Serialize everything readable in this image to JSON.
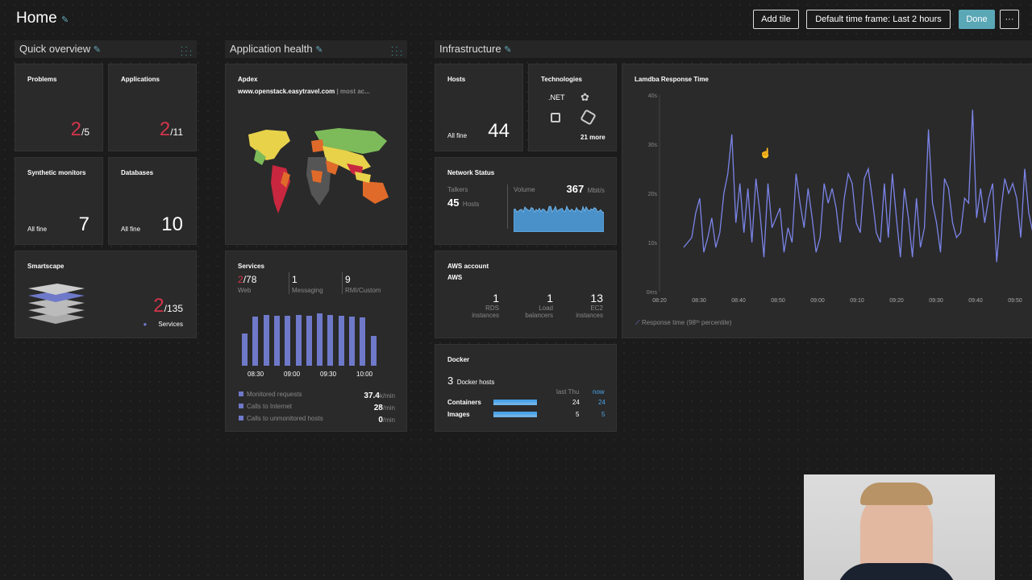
{
  "header": {
    "title": "Home",
    "add_tile": "Add tile",
    "timeframe": "Default time frame: Last 2 hours",
    "done": "Done",
    "more": "···"
  },
  "sections": {
    "quick": "Quick overview",
    "apphealth": "Application health",
    "infra": "Infrastructure"
  },
  "problems": {
    "title": "Problems",
    "num": "2",
    "den": "/5"
  },
  "applications": {
    "title": "Applications",
    "num": "2",
    "den": "/11"
  },
  "synthetic": {
    "title": "Synthetic monitors",
    "status": "All fine",
    "value": "7"
  },
  "databases": {
    "title": "Databases",
    "status": "All fine",
    "value": "10"
  },
  "smartscape": {
    "title": "Smartscape",
    "num": "2",
    "den": "/135",
    "label": "Services"
  },
  "apdex": {
    "title": "Apdex",
    "app": "www.openstack.easytravel.com",
    "suffix": "| most ac..."
  },
  "services": {
    "title": "Services",
    "web_num": "2",
    "web_den": "/78",
    "web_label": "Web",
    "msg_num": "1",
    "msg_label": "Messaging",
    "rmi_num": "9",
    "rmi_label": "RMI/Custom",
    "times": [
      "08:30",
      "09:00",
      "09:30",
      "10:00"
    ],
    "rows": [
      {
        "label": "Monitored requests",
        "value": "37.4",
        "unit": "k/min"
      },
      {
        "label": "Calls to Internet",
        "value": "28",
        "unit": "/min"
      },
      {
        "label": "Calls to unmonitored hosts",
        "value": "0",
        "unit": "/min"
      }
    ],
    "bars": [
      0.55,
      0.85,
      0.87,
      0.86,
      0.86,
      0.87,
      0.86,
      0.9,
      0.87,
      0.86,
      0.85,
      0.83,
      0.52
    ]
  },
  "hosts": {
    "title": "Hosts",
    "status": "All fine",
    "value": "44"
  },
  "technologies": {
    "title": "Technologies",
    "net": ".NET",
    "more": "21 more"
  },
  "network": {
    "title": "Network Status",
    "talkers_label": "Talkers",
    "talkers": "45",
    "hosts_label": "Hosts",
    "volume_label": "Volume",
    "volume": "367",
    "volume_unit": "Mbit/s"
  },
  "aws": {
    "title": "AWS account",
    "name": "AWS",
    "items": [
      {
        "value": "1",
        "l1": "RDS",
        "l2": "instances"
      },
      {
        "value": "1",
        "l1": "Load",
        "l2": "balancers"
      },
      {
        "value": "13",
        "l1": "EC2",
        "l2": "instances"
      }
    ]
  },
  "docker": {
    "title": "Docker",
    "hosts": "3",
    "hosts_label": "Docker hosts",
    "last": "last Thu",
    "now": "now",
    "rows": [
      {
        "label": "Containers",
        "last": "24",
        "now": "24"
      },
      {
        "label": "Images",
        "last": "5",
        "now": "5"
      }
    ]
  },
  "lambda": {
    "title": "Lamdba Response Time",
    "legend": "Response time (98ᵗʰ percentile)"
  },
  "chart_data": {
    "type": "line",
    "title": "Lamdba Response Time",
    "ylim": [
      0,
      40
    ],
    "y_ticks": [
      "0ms",
      "10s",
      "20s",
      "30s",
      "40s"
    ],
    "x_ticks": [
      "08:20",
      "08:30",
      "08:40",
      "08:50",
      "09:00",
      "09:10",
      "09:20",
      "09:30",
      "09:40",
      "09:50"
    ],
    "series": [
      {
        "name": "Response time (98ᵗʰ percentile)",
        "color": "#7b84e8",
        "values": [
          9,
          10,
          11,
          16,
          19,
          8,
          11,
          15,
          9,
          12,
          20,
          24,
          32,
          14,
          22,
          12,
          21,
          10,
          23,
          16,
          7,
          22,
          13,
          15,
          17,
          8,
          13,
          10,
          24,
          18,
          13,
          21,
          15,
          8,
          11,
          22,
          18,
          21,
          17,
          10,
          19,
          24,
          22,
          14,
          12,
          23,
          25,
          19,
          12,
          10,
          22,
          11,
          24,
          15,
          7,
          21,
          15,
          7,
          19,
          9,
          13,
          33,
          18,
          14,
          8,
          23,
          21,
          14,
          11,
          12,
          19,
          18,
          37,
          15,
          21,
          14,
          19,
          22,
          6,
          16,
          23,
          20,
          22,
          19,
          11,
          25,
          16,
          12
        ]
      }
    ]
  },
  "webcam": {
    "label": "webcam"
  }
}
